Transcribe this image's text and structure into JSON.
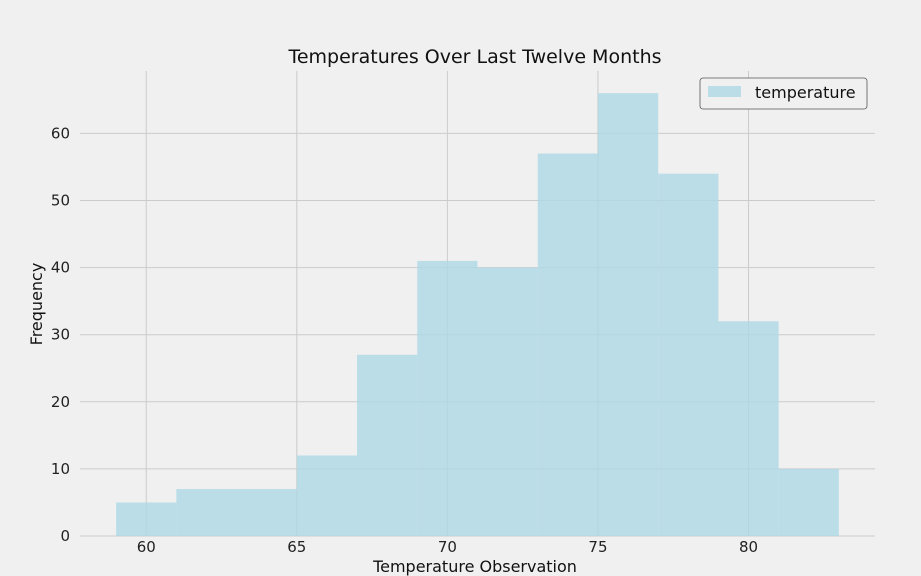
{
  "chart_data": {
    "type": "bar",
    "title": "Temperatures Over Last Twelve Months",
    "xlabel": "Temperature Observation",
    "ylabel": "Frequency",
    "bins": [
      {
        "x0": 59,
        "x1": 61,
        "count": 5
      },
      {
        "x0": 61,
        "x1": 63,
        "count": 7
      },
      {
        "x0": 63,
        "x1": 65,
        "count": 7
      },
      {
        "x0": 65,
        "x1": 67,
        "count": 12
      },
      {
        "x0": 67,
        "x1": 69,
        "count": 27
      },
      {
        "x0": 69,
        "x1": 71,
        "count": 41
      },
      {
        "x0": 71,
        "x1": 73,
        "count": 40
      },
      {
        "x0": 73,
        "x1": 75,
        "count": 57
      },
      {
        "x0": 75,
        "x1": 77,
        "count": 66
      },
      {
        "x0": 77,
        "x1": 79,
        "count": 54
      },
      {
        "x0": 79,
        "x1": 81,
        "count": 32
      },
      {
        "x0": 81,
        "x1": 83,
        "count": 10
      }
    ],
    "series": [
      {
        "name": "temperature"
      }
    ],
    "xlim": [
      57.8,
      84.2
    ],
    "ylim": [
      0,
      69.3
    ],
    "xticks": [
      60,
      65,
      70,
      75,
      80
    ],
    "yticks": [
      0,
      10,
      20,
      30,
      40,
      50,
      60
    ],
    "grid": true,
    "legend_position": "top-right",
    "colors": {
      "bar": "#add8e6",
      "background": "#f0f0f0",
      "grid": "#cbcbcb"
    }
  }
}
